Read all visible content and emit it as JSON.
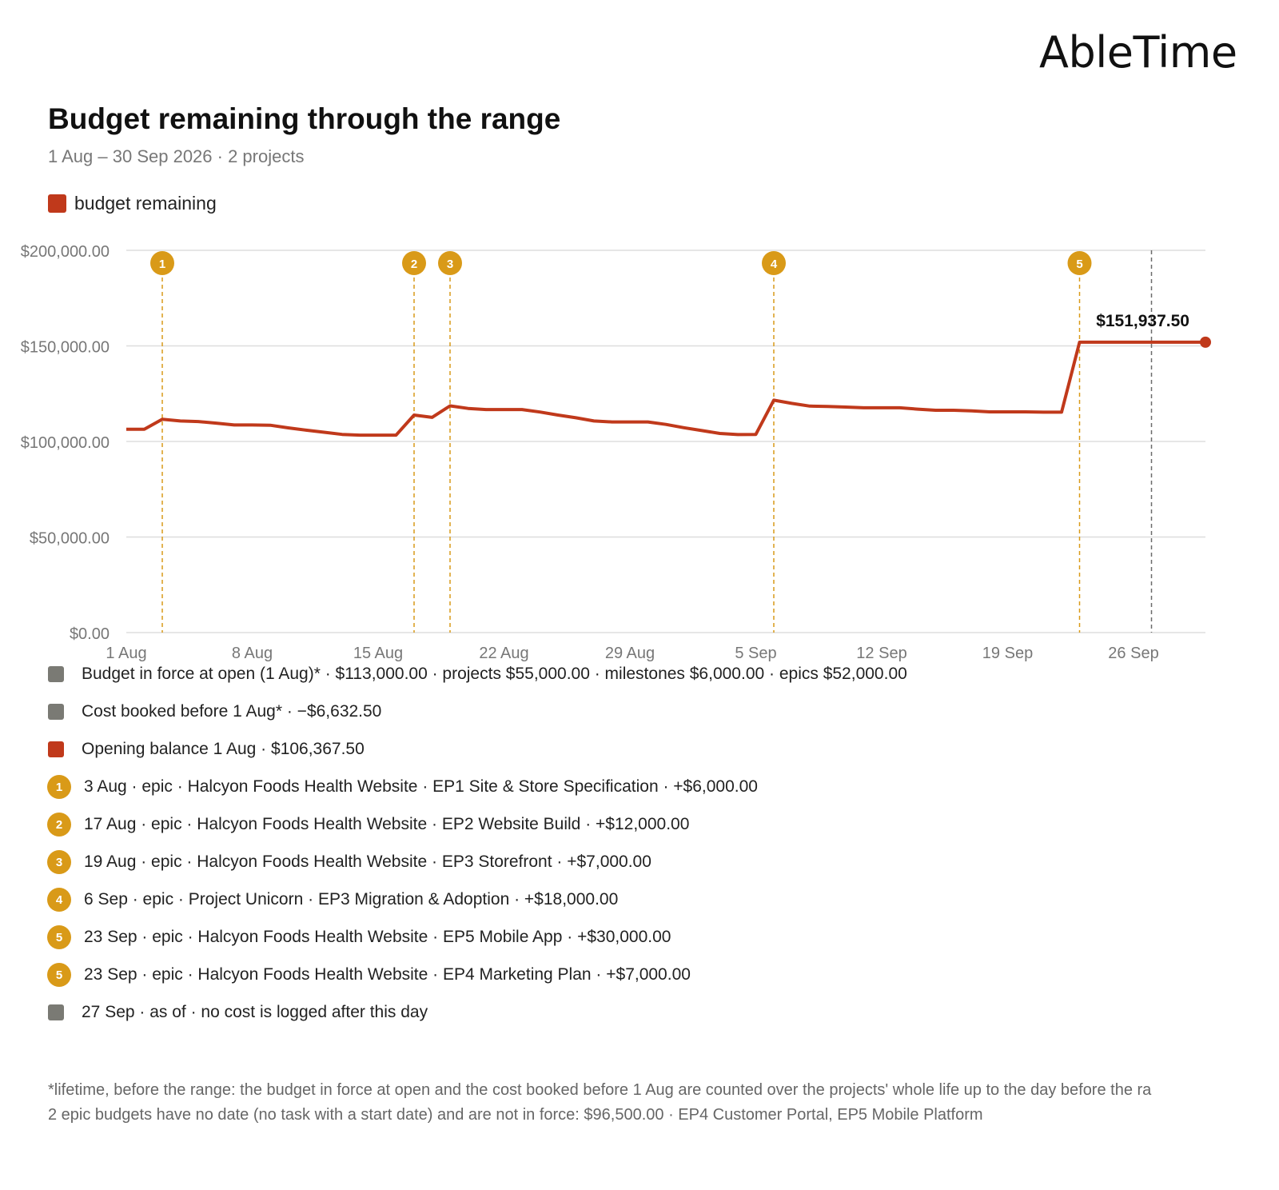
{
  "brand": "AbleTime",
  "title": "Budget remaining through the range",
  "subtitle": "1 Aug – 30 Sep 2026 · 2 projects",
  "legend_label": "budget remaining",
  "colors": {
    "line": "#c0391b",
    "event": "#d99a18",
    "grey": "#7a7a74",
    "asof": "#6b6b6b",
    "grid": "#dedede"
  },
  "chart_data": {
    "type": "line",
    "x_unit": "day",
    "x": [
      "2026-08-01",
      "2026-08-02",
      "2026-08-03",
      "2026-08-04",
      "2026-08-05",
      "2026-08-06",
      "2026-08-07",
      "2026-08-08",
      "2026-08-09",
      "2026-08-10",
      "2026-08-11",
      "2026-08-12",
      "2026-08-13",
      "2026-08-14",
      "2026-08-15",
      "2026-08-16",
      "2026-08-17",
      "2026-08-18",
      "2026-08-19",
      "2026-08-20",
      "2026-08-21",
      "2026-08-22",
      "2026-08-23",
      "2026-08-24",
      "2026-08-25",
      "2026-08-26",
      "2026-08-27",
      "2026-08-28",
      "2026-08-29",
      "2026-08-30",
      "2026-08-31",
      "2026-09-01",
      "2026-09-02",
      "2026-09-03",
      "2026-09-04",
      "2026-09-05",
      "2026-09-06",
      "2026-09-07",
      "2026-09-08",
      "2026-09-09",
      "2026-09-10",
      "2026-09-11",
      "2026-09-12",
      "2026-09-13",
      "2026-09-14",
      "2026-09-15",
      "2026-09-16",
      "2026-09-17",
      "2026-09-18",
      "2026-09-19",
      "2026-09-20",
      "2026-09-21",
      "2026-09-22",
      "2026-09-23",
      "2026-09-24",
      "2026-09-25",
      "2026-09-26",
      "2026-09-27",
      "2026-09-28",
      "2026-09-29",
      "2026-09-30"
    ],
    "series": [
      {
        "name": "budget remaining",
        "values": [
          106400,
          106400,
          111600,
          110700,
          110400,
          109600,
          108600,
          108600,
          108500,
          107100,
          105900,
          104800,
          103700,
          103300,
          103300,
          103300,
          113800,
          112600,
          118600,
          117300,
          116700,
          116700,
          116700,
          115400,
          113800,
          112400,
          110700,
          110200,
          110200,
          110200,
          108900,
          107200,
          105700,
          104200,
          103600,
          103700,
          121600,
          119900,
          118500,
          118300,
          118000,
          117600,
          117600,
          117600,
          116900,
          116300,
          116300,
          116000,
          115500,
          115500,
          115500,
          115300,
          115300,
          151937.5,
          151937.5,
          151937.5,
          151937.5,
          151937.5,
          151937.5,
          151937.5,
          151937.5
        ]
      }
    ],
    "ylim": [
      0,
      200000
    ],
    "yticks": [
      0,
      50000,
      100000,
      150000,
      200000
    ],
    "ytick_labels": [
      "$0.00",
      "$50,000.00",
      "$100,000.00",
      "$150,000.00",
      "$200,000.00"
    ],
    "xticks": [
      "2026-08-01",
      "2026-08-08",
      "2026-08-15",
      "2026-08-22",
      "2026-08-29",
      "2026-09-05",
      "2026-09-12",
      "2026-09-19",
      "2026-09-26"
    ],
    "xtick_labels": [
      "1 Aug",
      "8 Aug",
      "15 Aug",
      "22 Aug",
      "29 Aug",
      "5 Sep",
      "12 Sep",
      "19 Sep",
      "26 Sep"
    ],
    "events": [
      {
        "num": "1",
        "date": "2026-08-03"
      },
      {
        "num": "2",
        "date": "2026-08-17"
      },
      {
        "num": "3",
        "date": "2026-08-19"
      },
      {
        "num": "4",
        "date": "2026-09-06"
      },
      {
        "num": "5",
        "date": "2026-09-23"
      }
    ],
    "as_of_date": "2026-09-27",
    "end_label": "$151,937.50",
    "grid": true
  },
  "breakdown": [
    {
      "marker": "grey",
      "text": "Budget in force at open (1 Aug)* · $113,000.00 · projects $55,000.00 · milestones $6,000.00 · epics $52,000.00"
    },
    {
      "marker": "grey",
      "text": "Cost booked before 1 Aug* · −$6,632.50"
    },
    {
      "marker": "red",
      "text": "Opening balance 1 Aug · $106,367.50"
    },
    {
      "marker": "num",
      "num": "1",
      "text": "3 Aug · epic · Halcyon Foods Health Website · EP1 Site & Store Specification · +$6,000.00"
    },
    {
      "marker": "num",
      "num": "2",
      "text": "17 Aug · epic · Halcyon Foods Health Website · EP2 Website Build · +$12,000.00"
    },
    {
      "marker": "num",
      "num": "3",
      "text": "19 Aug · epic · Halcyon Foods Health Website · EP3 Storefront · +$7,000.00"
    },
    {
      "marker": "num",
      "num": "4",
      "text": "6 Sep · epic · Project Unicorn · EP3 Migration & Adoption · +$18,000.00"
    },
    {
      "marker": "num",
      "num": "5",
      "text": "23 Sep · epic · Halcyon Foods Health Website · EP5 Mobile App · +$30,000.00"
    },
    {
      "marker": "num",
      "num": "5",
      "text": "23 Sep · epic · Halcyon Foods Health Website · EP4 Marketing Plan · +$7,000.00"
    },
    {
      "marker": "grey",
      "text": "27 Sep · as of · no cost is logged after this day"
    }
  ],
  "footnotes": [
    "*lifetime, before the range: the budget in force at open and the cost booked before 1 Aug are counted over the projects' whole life up to the day before the ra",
    "2 epic budgets have no date (no task with a start date) and are not in force: $96,500.00 · EP4 Customer Portal, EP5 Mobile Platform"
  ]
}
